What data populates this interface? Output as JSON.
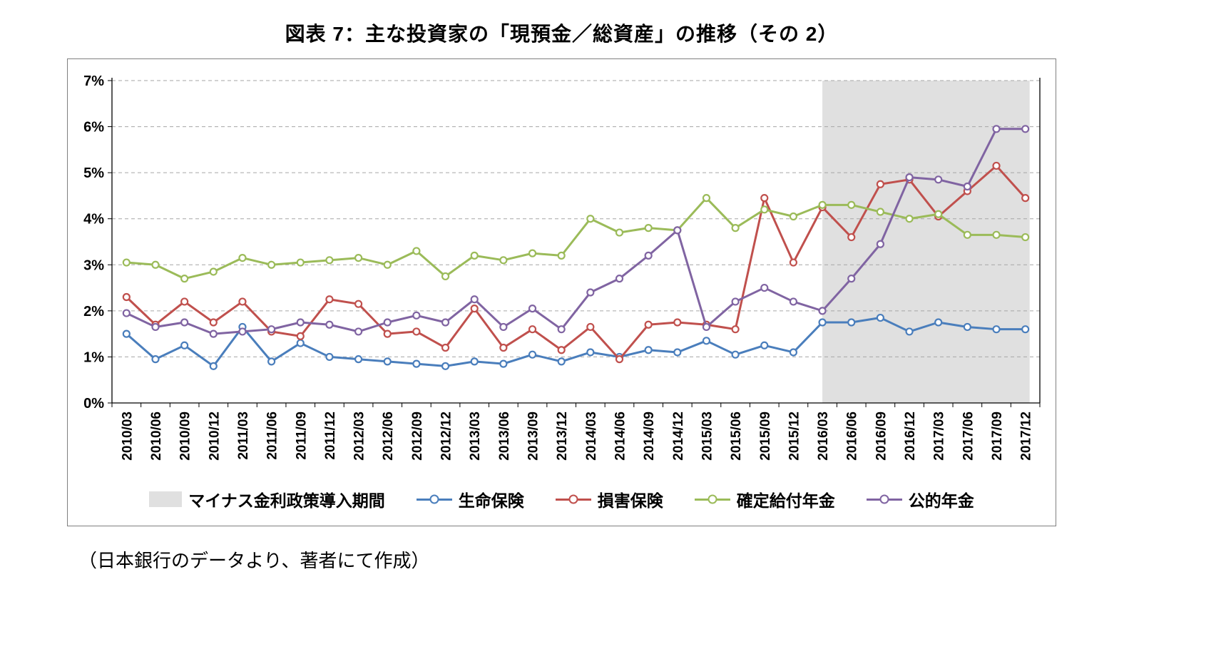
{
  "title": "図表 7：主な投資家の「現預金／総資産」の推移（その 2）",
  "caption": "（日本銀行のデータより、著者にて作成）",
  "chart_data": {
    "type": "line",
    "title": "図表 7：主な投資家の「現預金／総資産」の推移（その 2）",
    "xlabel": "",
    "ylabel": "",
    "ylim": [
      0,
      7
    ],
    "grid": true,
    "legend_position": "bottom",
    "y_ticks": [
      "0%",
      "1%",
      "2%",
      "3%",
      "4%",
      "5%",
      "6%",
      "7%"
    ],
    "x": [
      "2010/03",
      "2010/06",
      "2010/09",
      "2010/12",
      "2011/03",
      "2011/06",
      "2011/09",
      "2011/12",
      "2012/03",
      "2012/06",
      "2012/09",
      "2012/12",
      "2013/03",
      "2013/06",
      "2013/09",
      "2013/12",
      "2014/03",
      "2014/06",
      "2014/09",
      "2014/12",
      "2015/03",
      "2015/06",
      "2015/09",
      "2015/12",
      "2016/03",
      "2016/06",
      "2016/09",
      "2016/12",
      "2017/03",
      "2017/06",
      "2017/09",
      "2017/12"
    ],
    "series": [
      {
        "id": "life-insurance",
        "name": "生命保険",
        "color": "#4A7EBC",
        "values": [
          1.5,
          0.95,
          1.25,
          0.8,
          1.65,
          0.9,
          1.3,
          1.0,
          0.95,
          0.9,
          0.85,
          0.8,
          0.9,
          0.85,
          1.05,
          0.9,
          1.1,
          1.0,
          1.15,
          1.1,
          1.35,
          1.05,
          1.25,
          1.1,
          1.75,
          1.75,
          1.85,
          1.55,
          1.75,
          1.65,
          1.6,
          1.6
        ]
      },
      {
        "id": "nonlife-insurance",
        "name": "損害保険",
        "color": "#C0504D",
        "values": [
          2.3,
          1.7,
          2.2,
          1.75,
          2.2,
          1.55,
          1.45,
          2.25,
          2.15,
          1.5,
          1.55,
          1.2,
          2.05,
          1.2,
          1.6,
          1.15,
          1.65,
          0.95,
          1.7,
          1.75,
          1.7,
          1.6,
          4.45,
          3.05,
          4.25,
          3.6,
          4.75,
          4.85,
          4.05,
          4.6,
          5.15,
          4.45
        ]
      },
      {
        "id": "defined-benefit-pension",
        "name": "確定給付年金",
        "color": "#9BBB59",
        "values": [
          3.05,
          3.0,
          2.7,
          2.85,
          3.15,
          3.0,
          3.05,
          3.1,
          3.15,
          3.0,
          3.3,
          2.75,
          3.2,
          3.1,
          3.25,
          3.2,
          4.0,
          3.7,
          3.8,
          3.75,
          4.45,
          3.8,
          4.2,
          4.05,
          4.3,
          4.3,
          4.15,
          4.0,
          4.1,
          3.65,
          3.65,
          3.6
        ]
      },
      {
        "id": "public-pension",
        "name": "公的年金",
        "color": "#8064A2",
        "values": [
          1.95,
          1.65,
          1.75,
          1.5,
          1.55,
          1.6,
          1.75,
          1.7,
          1.55,
          1.75,
          1.9,
          1.75,
          2.25,
          1.65,
          2.05,
          1.6,
          2.4,
          2.7,
          3.2,
          3.75,
          1.65,
          2.2,
          2.5,
          2.2,
          2.0,
          2.7,
          3.45,
          4.9,
          4.85,
          4.7,
          5.95,
          5.95
        ]
      }
    ],
    "shaded_region": {
      "label": "マイナス金利政策導入期間",
      "from": "2016/03",
      "to": "2017/12",
      "color": "#E0E0E0"
    }
  }
}
